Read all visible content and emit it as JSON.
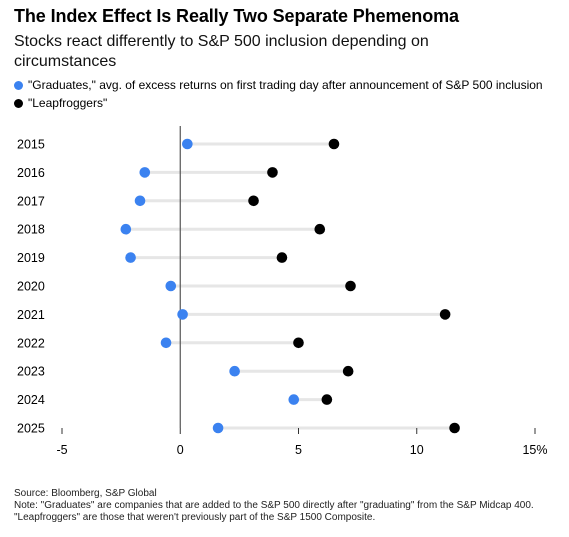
{
  "title": "The Index Effect Is Really Two Separate Phemenoma",
  "subtitle": "Stocks react differently to S&P 500 inclusion depending on circumstances",
  "legend": [
    {
      "label": "\"Graduates,\" avg. of excess returns on first trading day after announcement of S&P 500 inclusion",
      "color": "#3b82f0"
    },
    {
      "label": "\"Leapfroggers\"",
      "color": "#000000"
    }
  ],
  "source": "Source: Bloomberg, S&P Global",
  "note": "Note: \"Graduates\" are companies that are added to the S&P 500 directly after \"graduating\" from the S&P Midcap 400. \"Leapfroggers\" are those that weren't previously part of the S&P 1500 Composite.",
  "chart_data": {
    "type": "scatter",
    "categories": [
      "2015",
      "2016",
      "2017",
      "2018",
      "2019",
      "2020",
      "2021",
      "2022",
      "2023",
      "2024",
      "2025"
    ],
    "series": [
      {
        "name": "\"Graduates,\" avg. of excess returns on first trading day after announcement of S&P 500 inclusion",
        "color": "#3b82f0",
        "values": [
          0.3,
          -1.5,
          -1.7,
          -2.3,
          -2.1,
          -0.4,
          0.1,
          -0.6,
          2.3,
          4.8,
          1.6
        ]
      },
      {
        "name": "\"Leapfroggers\"",
        "color": "#000000",
        "values": [
          6.5,
          3.9,
          3.1,
          5.9,
          4.3,
          7.2,
          11.2,
          5.0,
          7.1,
          6.2,
          11.6
        ]
      }
    ],
    "xlim": [
      -5,
      15
    ],
    "xticks": [
      "-5",
      "0",
      "5",
      "10",
      "15%"
    ],
    "xtick_values": [
      -5,
      0,
      5,
      10,
      15
    ],
    "grid": false,
    "legend_position": "top-left"
  }
}
